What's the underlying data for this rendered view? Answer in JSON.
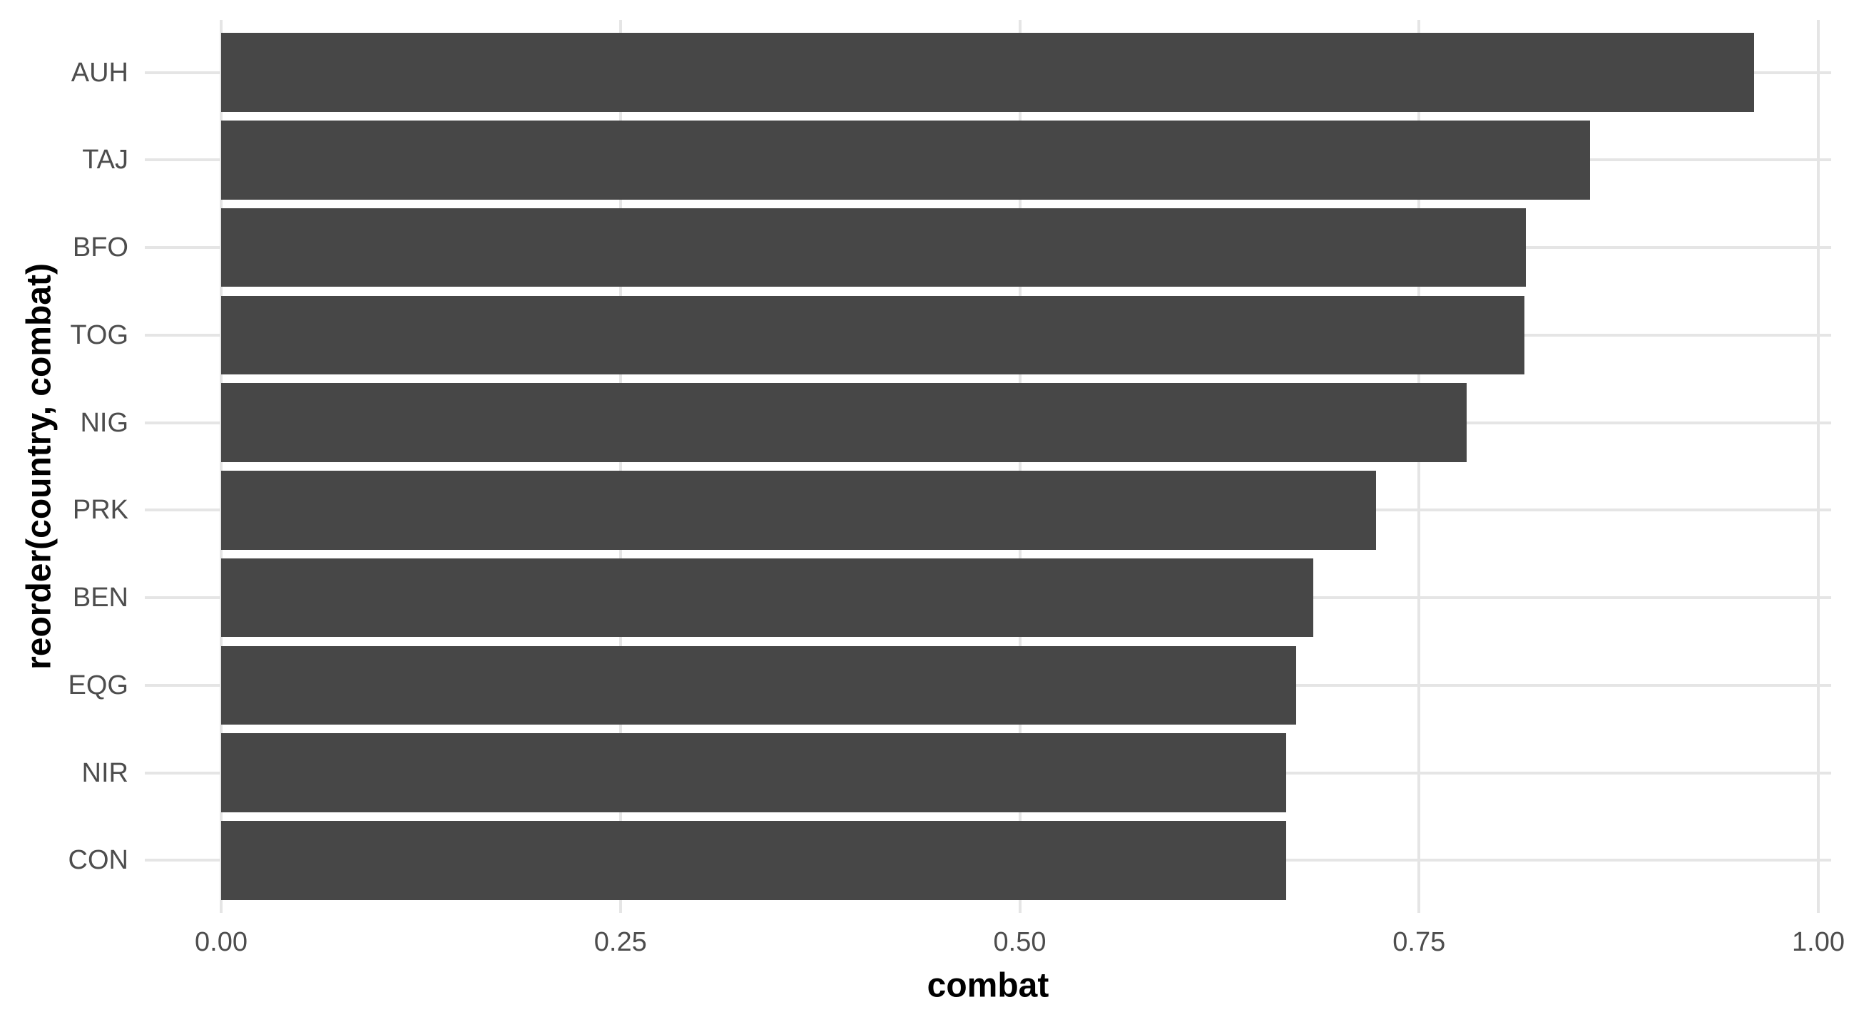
{
  "chart_data": {
    "type": "bar",
    "orientation": "horizontal",
    "title": "",
    "xlabel": "combat",
    "ylabel": "reorder(country, combat)",
    "categories": [
      "AUH",
      "TAJ",
      "BFO",
      "TOG",
      "NIG",
      "PRK",
      "BEN",
      "EQG",
      "NIR",
      "CON"
    ],
    "values": [
      0.96,
      0.857,
      0.817,
      0.816,
      0.78,
      0.723,
      0.684,
      0.673,
      0.667,
      0.667
    ],
    "x_ticks": [
      {
        "label": "0.00",
        "value": 0.0
      },
      {
        "label": "0.25",
        "value": 0.25
      },
      {
        "label": "0.50",
        "value": 0.5
      },
      {
        "label": "0.75",
        "value": 0.75
      },
      {
        "label": "1.00",
        "value": 1.0
      }
    ],
    "xlim": [
      -0.048,
      1.008
    ],
    "grid": "major-only",
    "legend": "none",
    "colors": {
      "bar": "#474747",
      "grid": "#e5e5e5",
      "tick_text": "#4d4d4d",
      "axis_title_text": "#000000",
      "background": "#ffffff"
    }
  }
}
